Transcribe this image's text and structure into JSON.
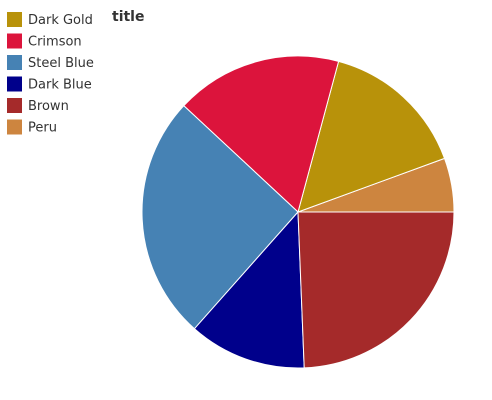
{
  "chart_data": {
    "type": "pie",
    "title": "title",
    "categories": [
      "Dark Gold",
      "Crimson",
      "Steel Blue",
      "Dark Blue",
      "Brown",
      "Peru"
    ],
    "values": [
      15,
      17,
      25,
      12,
      24,
      5.5
    ],
    "colors": [
      "#b8920a",
      "#dc143c",
      "#4682b4",
      "#00008b",
      "#a52a2a",
      "#cd853f"
    ],
    "slice_order": [
      "Peru",
      "Dark Gold",
      "Crimson",
      "Steel Blue",
      "Dark Blue",
      "Brown"
    ],
    "start_direction": "right, going counter-clockwise",
    "legend_position": "left",
    "grid": false
  }
}
